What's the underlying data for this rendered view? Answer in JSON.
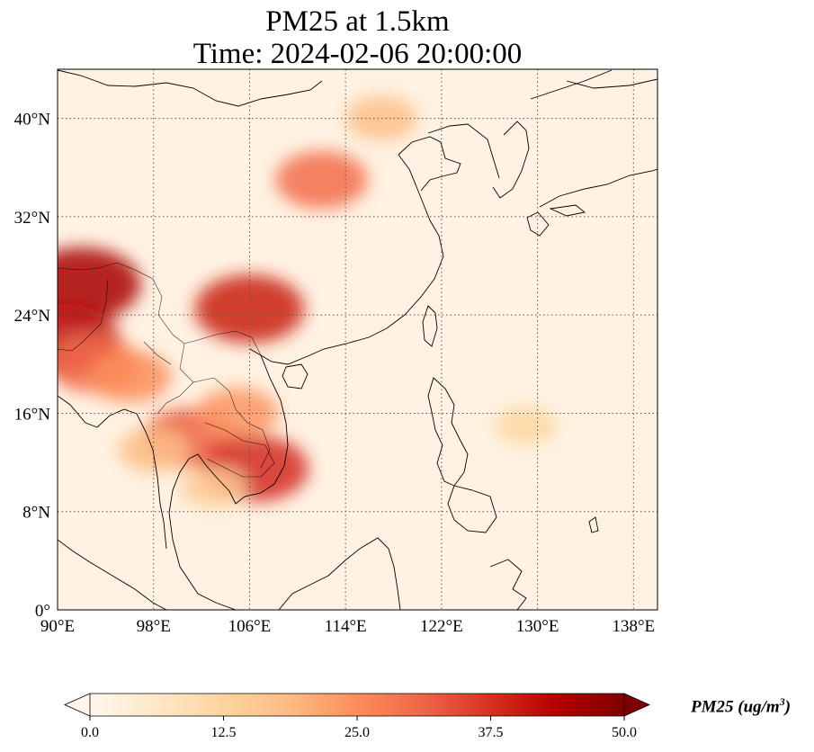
{
  "title": {
    "line1": "PM25 at 1.5km",
    "line2": "Time: 2024-02-06 20:00:00"
  },
  "map": {
    "variable": "PM25",
    "lon_range": [
      90,
      140
    ],
    "lat_range": [
      0,
      44
    ],
    "x_ticks": [
      "90°E",
      "98°E",
      "106°E",
      "114°E",
      "122°E",
      "130°E",
      "138°E"
    ],
    "x_tick_values": [
      90,
      98,
      106,
      114,
      122,
      130,
      138
    ],
    "y_ticks": [
      "0°",
      "8°N",
      "16°N",
      "24°N",
      "32°N",
      "40°N"
    ],
    "y_tick_values": [
      0,
      8,
      16,
      24,
      32,
      40
    ],
    "gridlines": "dotted",
    "colormap": "OrRd",
    "hotspots": [
      {
        "lon": 92,
        "lat": 26.5,
        "value": 45
      },
      {
        "lon": 90.5,
        "lat": 22,
        "value": 42
      },
      {
        "lon": 93,
        "lat": 20,
        "value": 30
      },
      {
        "lon": 96,
        "lat": 19,
        "value": 25
      },
      {
        "lon": 106,
        "lat": 24.5,
        "value": 40
      },
      {
        "lon": 112,
        "lat": 35,
        "value": 30
      },
      {
        "lon": 117,
        "lat": 40,
        "value": 18
      },
      {
        "lon": 101,
        "lat": 14,
        "value": 32
      },
      {
        "lon": 105,
        "lat": 16,
        "value": 24
      },
      {
        "lon": 106.5,
        "lat": 11.5,
        "value": 38
      },
      {
        "lon": 98,
        "lat": 13,
        "value": 18
      },
      {
        "lon": 103,
        "lat": 10,
        "value": 15
      },
      {
        "lon": 129,
        "lat": 15,
        "value": 12
      }
    ]
  },
  "colorbar": {
    "min": 0.0,
    "max": 50.0,
    "ticks": [
      "0.0",
      "12.5",
      "25.0",
      "37.5",
      "50.0"
    ],
    "extend": "both",
    "label_text": "PM25 (ug/m",
    "label_sup": "3",
    "label_close": ")",
    "colors": [
      "#fff7ec",
      "#fee8c8",
      "#fdd49e",
      "#fdbb84",
      "#fc8d59",
      "#ef6548",
      "#d7301f",
      "#b30000",
      "#7f0000"
    ]
  }
}
